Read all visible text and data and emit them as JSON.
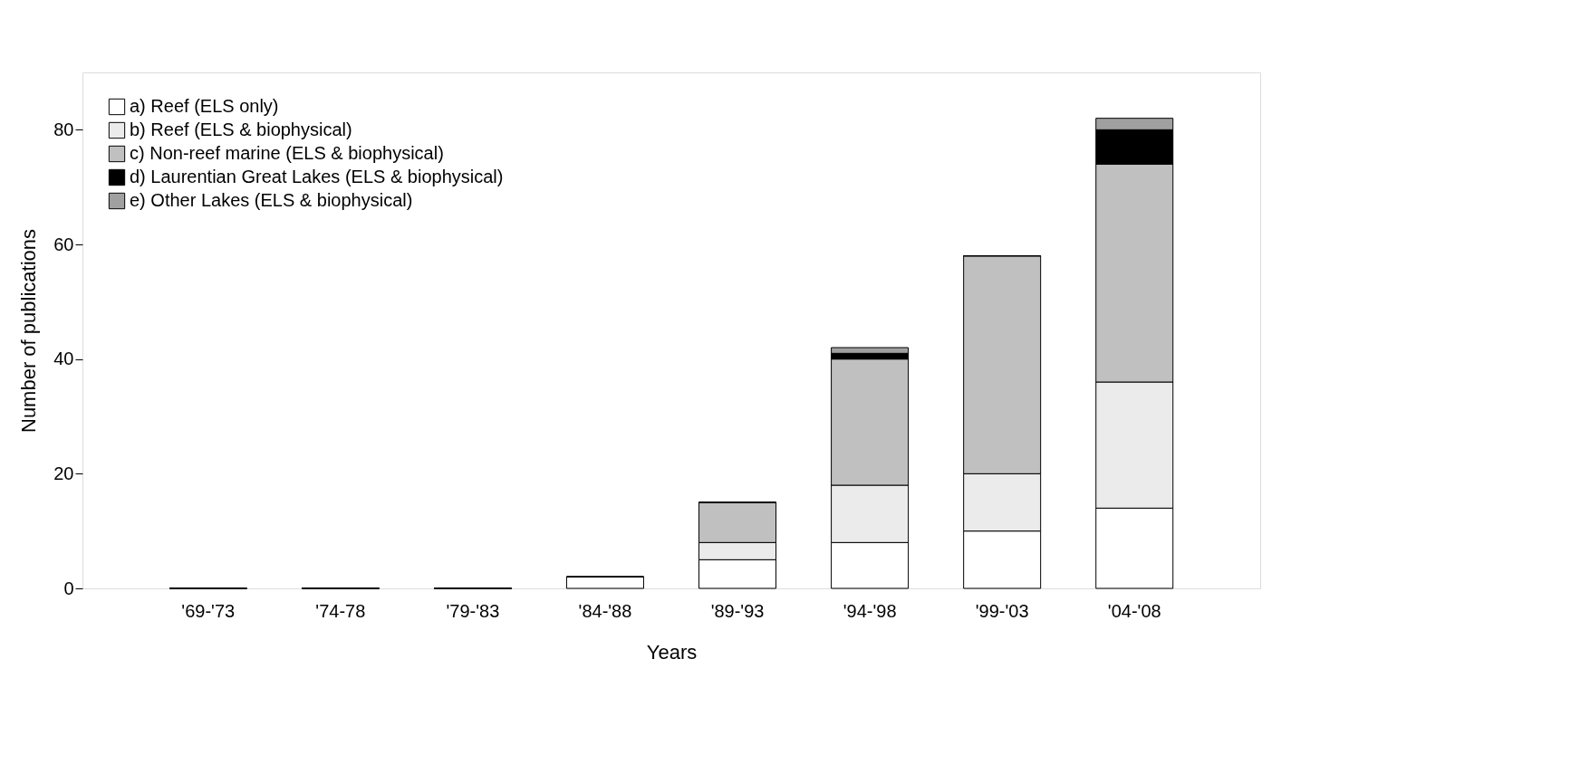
{
  "chart_data": {
    "type": "bar",
    "stacked": true,
    "xlabel": "Years",
    "ylabel": "Number of publications",
    "categories": [
      "'69-'73",
      "'74-78",
      "'79-'83",
      "'84-'88",
      "'89-'93",
      "'94-'98",
      "'99-'03",
      "'04-'08"
    ],
    "series": [
      {
        "name": "a) Reef (ELS only)",
        "color": "#ffffff",
        "values": [
          0,
          0,
          0,
          2,
          5,
          8,
          10,
          14
        ]
      },
      {
        "name": "b) Reef (ELS & biophysical)",
        "color": "#ebebeb",
        "values": [
          0,
          0,
          0,
          0,
          3,
          10,
          10,
          22
        ]
      },
      {
        "name": "c) Non-reef marine (ELS & biophysical)",
        "color": "#c0c0c0",
        "values": [
          0,
          0,
          0,
          0,
          7,
          22,
          38,
          38
        ]
      },
      {
        "name": "d) Laurentian Great Lakes (ELS & biophysical)",
        "color": "#000000",
        "values": [
          0,
          0,
          0,
          0,
          0,
          1,
          0,
          6
        ]
      },
      {
        "name": "e) Other Lakes (ELS & biophysical)",
        "color": "#a0a0a0",
        "values": [
          0,
          0,
          0,
          0,
          0,
          1,
          0,
          2
        ]
      }
    ],
    "ylim": [
      0,
      90
    ],
    "yticks": [
      0,
      20,
      40,
      60,
      80
    ],
    "grid": false,
    "legend": "top left"
  }
}
